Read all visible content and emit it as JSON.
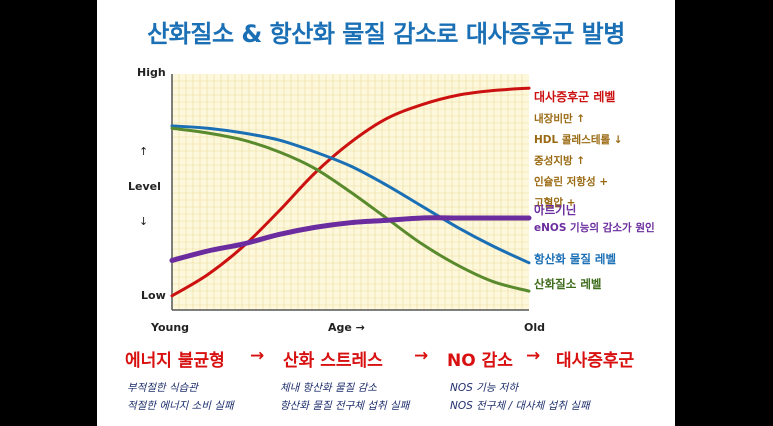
{
  "title": "산화질소 & 항산화 물질 감소로 대사증후군 발병",
  "chart_data": {
    "type": "line",
    "xlabel": "Age  →",
    "x_start_label": "Young",
    "x_end_label": "Old",
    "ylabel": "Level",
    "y_up_arrow": "↑",
    "y_down_arrow": "↓",
    "y_high_label": "High",
    "y_low_label": "Low",
    "x": [
      0,
      10,
      20,
      30,
      40,
      50,
      60,
      70,
      80,
      90,
      100
    ],
    "xlim": [
      0,
      100
    ],
    "ylim": [
      0,
      100
    ],
    "grid": true,
    "series": [
      {
        "name": "대사증후군 레벨",
        "color": "#cc1111",
        "values": [
          6,
          15,
          27,
          42,
          58,
          71,
          81,
          87,
          91,
          93,
          94
        ]
      },
      {
        "name": "항산화 물질 레벨",
        "color": "#1a6fb5",
        "values": [
          78,
          77,
          75,
          72,
          67,
          61,
          53,
          44,
          35,
          27,
          20
        ]
      },
      {
        "name": "산화질소 레벨",
        "color": "#5a8a2e",
        "values": [
          77,
          75,
          72,
          67,
          60,
          50,
          39,
          28,
          19,
          12,
          8
        ]
      },
      {
        "name": "아르기닌",
        "color": "#6a2c9e",
        "values": [
          21,
          25,
          28,
          32,
          35,
          37,
          38,
          39,
          39,
          39,
          39
        ]
      }
    ],
    "annotations": {
      "metabolic_factors": [
        "내장비만 ↑",
        "HDL 콜레스테롤 ↓",
        "중성지방 ↑",
        "인슐린 저항성 +",
        "고혈압 +"
      ],
      "arginine_note": "eNOS 기능의 감소가 원인"
    }
  },
  "flow": {
    "steps": [
      "에너지 불균형",
      "산화 스트레스",
      "NO 감소",
      "대사증후군"
    ],
    "arrow": "→"
  },
  "notes": {
    "col1": [
      "부적절한 식습관",
      "적절한 에너지 소비 실패"
    ],
    "col2": [
      "체내 항산화 물질 감소",
      "항산화 물질 전구체 섭취 실패"
    ],
    "col3": [
      "NOS 기능 저하",
      "NOS 전구체 / 대사체 섭취 실패"
    ]
  }
}
